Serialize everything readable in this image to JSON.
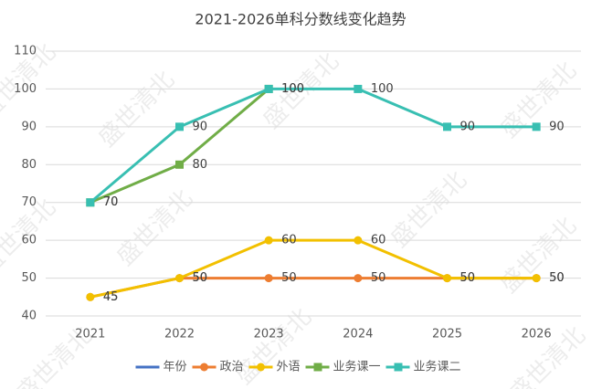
{
  "chart_data": {
    "type": "line",
    "title": "2021-2026单科分数线变化趋势",
    "categories": [
      "2021",
      "2022",
      "2023",
      "2024",
      "2025",
      "2026"
    ],
    "series": [
      {
        "name": "年份",
        "color": "#4472c4",
        "values": [
          null,
          null,
          null,
          null,
          null,
          null
        ]
      },
      {
        "name": "政治",
        "color": "#ed7d31",
        "marker": "circle",
        "values": [
          45,
          50,
          50,
          50,
          50,
          50
        ]
      },
      {
        "name": "外语",
        "color": "#f2c000",
        "marker": "circle",
        "values": [
          45,
          50,
          60,
          60,
          50,
          50
        ]
      },
      {
        "name": "业务课一",
        "color": "#70ad47",
        "marker": "square",
        "values": [
          70,
          80,
          100,
          null,
          null,
          null
        ]
      },
      {
        "name": "业务课二",
        "color": "#38bfb2",
        "marker": "square",
        "values": [
          70,
          90,
          100,
          100,
          90,
          90
        ]
      }
    ],
    "ylim": [
      40,
      110
    ],
    "yticks": [
      40,
      50,
      60,
      70,
      80,
      90,
      100,
      110
    ],
    "grid": true,
    "legend": "bottom",
    "watermark": "盛世清北"
  }
}
